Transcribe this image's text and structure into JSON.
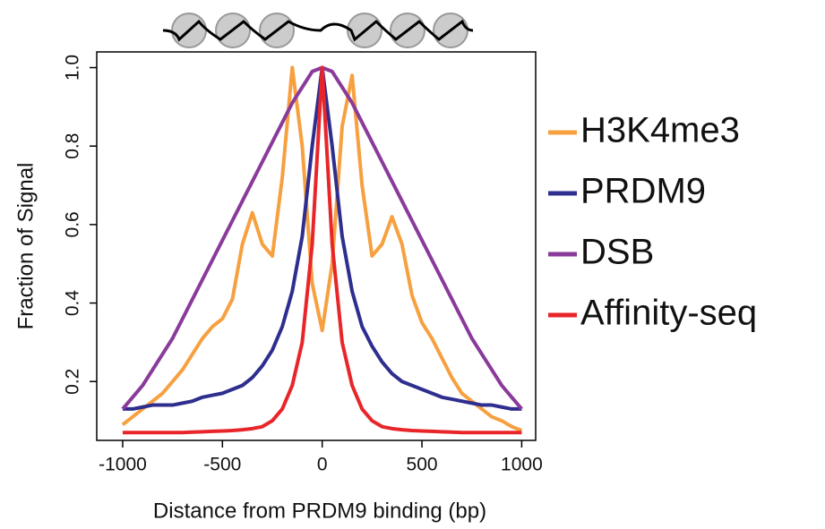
{
  "chart_data": {
    "type": "line",
    "xlabel": "Distance from PRDM9 binding (bp)",
    "ylabel": "Fraction of Signal",
    "x": [
      -1000,
      -950,
      -900,
      -850,
      -800,
      -750,
      -700,
      -650,
      -600,
      -550,
      -500,
      -450,
      -400,
      -350,
      -300,
      -250,
      -200,
      -150,
      -100,
      -50,
      0,
      50,
      100,
      150,
      200,
      250,
      300,
      350,
      400,
      450,
      500,
      550,
      600,
      650,
      700,
      750,
      800,
      850,
      900,
      950,
      1000
    ],
    "series": [
      {
        "name": "H3K4me3",
        "color": "#f7a040",
        "values": [
          0.09,
          0.11,
          0.13,
          0.15,
          0.17,
          0.2,
          0.23,
          0.27,
          0.31,
          0.34,
          0.36,
          0.41,
          0.55,
          0.63,
          0.55,
          0.52,
          0.72,
          1.0,
          0.8,
          0.45,
          0.33,
          0.5,
          0.85,
          0.98,
          0.7,
          0.52,
          0.55,
          0.62,
          0.55,
          0.42,
          0.35,
          0.31,
          0.26,
          0.21,
          0.17,
          0.15,
          0.13,
          0.11,
          0.1,
          0.085,
          0.075
        ]
      },
      {
        "name": "PRDM9",
        "color": "#2e2e8f",
        "values": [
          0.13,
          0.13,
          0.135,
          0.14,
          0.14,
          0.14,
          0.145,
          0.15,
          0.16,
          0.165,
          0.17,
          0.18,
          0.19,
          0.21,
          0.24,
          0.28,
          0.34,
          0.43,
          0.57,
          0.8,
          1.0,
          0.8,
          0.57,
          0.43,
          0.34,
          0.29,
          0.25,
          0.22,
          0.2,
          0.19,
          0.18,
          0.17,
          0.16,
          0.155,
          0.15,
          0.145,
          0.14,
          0.14,
          0.135,
          0.13,
          0.13
        ]
      },
      {
        "name": "DSB",
        "color": "#8a3a9a",
        "values": [
          0.13,
          0.16,
          0.19,
          0.23,
          0.27,
          0.31,
          0.36,
          0.41,
          0.46,
          0.51,
          0.56,
          0.61,
          0.66,
          0.71,
          0.76,
          0.81,
          0.86,
          0.91,
          0.95,
          0.99,
          1.0,
          0.99,
          0.95,
          0.91,
          0.86,
          0.81,
          0.76,
          0.71,
          0.66,
          0.61,
          0.56,
          0.51,
          0.46,
          0.41,
          0.36,
          0.31,
          0.27,
          0.23,
          0.19,
          0.16,
          0.13
        ]
      },
      {
        "name": "Affinity-seq",
        "color": "#e8262a",
        "values": [
          0.07,
          0.07,
          0.07,
          0.07,
          0.07,
          0.07,
          0.07,
          0.071,
          0.072,
          0.073,
          0.074,
          0.075,
          0.077,
          0.08,
          0.085,
          0.1,
          0.13,
          0.19,
          0.3,
          0.55,
          1.0,
          0.55,
          0.3,
          0.19,
          0.13,
          0.1,
          0.085,
          0.08,
          0.077,
          0.075,
          0.074,
          0.073,
          0.072,
          0.071,
          0.07,
          0.07,
          0.07,
          0.07,
          0.07,
          0.07,
          0.07
        ]
      }
    ],
    "xlim": [
      -1130,
      1070
    ],
    "xticks": [
      -1000,
      -500,
      0,
      500,
      1000
    ],
    "ylim": [
      0.05,
      1.04
    ],
    "yticks": [
      0.2,
      0.4,
      0.6,
      0.8,
      {
        "value": 1,
        "label": "1.0"
      }
    ],
    "legend": "right"
  }
}
